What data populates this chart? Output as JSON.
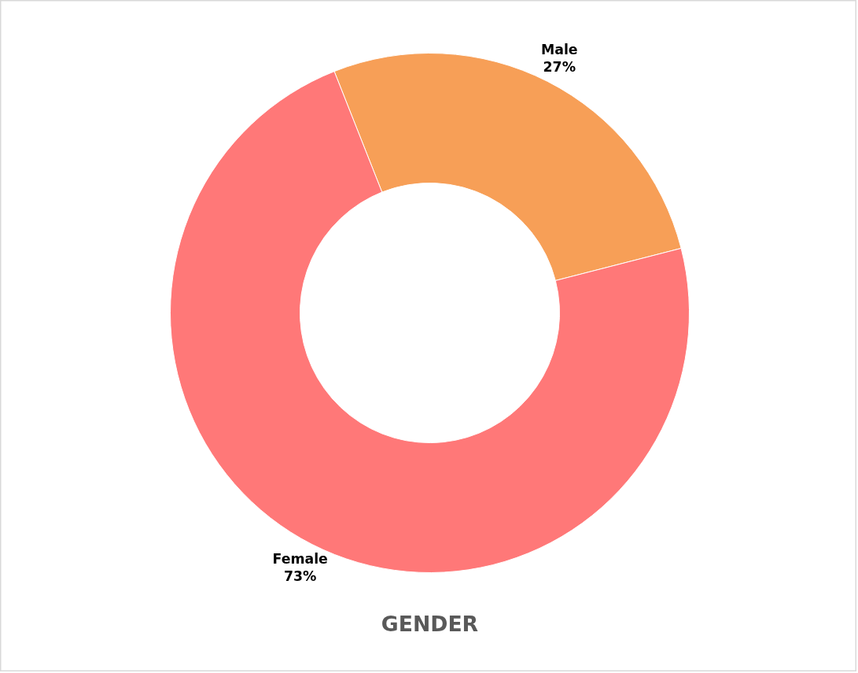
{
  "chart_data": {
    "type": "donut",
    "title": "GENDER",
    "categories": [
      "Male",
      "Female"
    ],
    "values": [
      27,
      73
    ],
    "colors": [
      "#f79f57",
      "#ff7878"
    ],
    "value_labels": [
      "27%",
      "73%"
    ]
  }
}
